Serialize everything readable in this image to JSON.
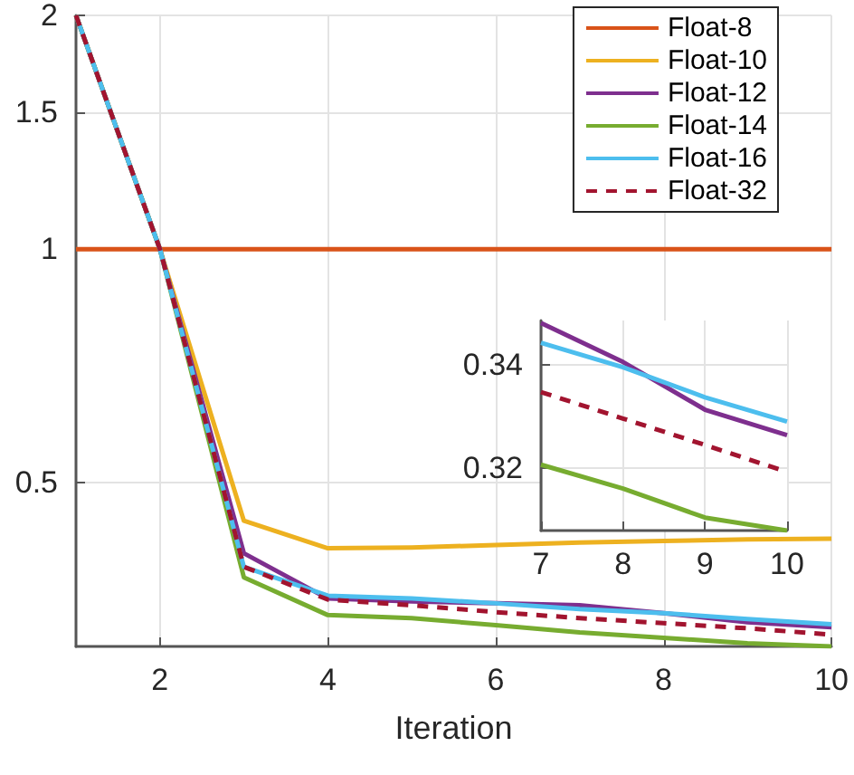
{
  "chart_data": [
    {
      "type": "line",
      "xlabel": "Iteration",
      "x": [
        1,
        2,
        3,
        4,
        5,
        6,
        7,
        8,
        9,
        10
      ],
      "xlim": [
        1,
        10
      ],
      "xticks": [
        2,
        4,
        6,
        8,
        10
      ],
      "ylim": [
        0.308,
        2
      ],
      "yticks": [
        0.5,
        1,
        1.5,
        2
      ],
      "log": "y",
      "grid": true,
      "legend": "top right",
      "series": [
        {
          "name": "Float-8",
          "color": "#d95319",
          "values": [
            1,
            1,
            1,
            1,
            1,
            1,
            1,
            1,
            1,
            1
          ]
        },
        {
          "name": "Float-10",
          "color": "#edb120",
          "values": [
            2,
            1,
            0.447,
            0.412,
            0.413,
            0.416,
            0.419,
            0.421,
            0.423,
            0.424
          ]
        },
        {
          "name": "Float-12",
          "color": "#7e2f8e",
          "values": [
            2,
            1,
            0.406,
            0.355,
            0.352,
            0.35,
            0.348,
            0.34,
            0.331,
            0.326
          ]
        },
        {
          "name": "Float-14",
          "color": "#77ac30",
          "values": [
            2,
            1,
            0.378,
            0.338,
            0.335,
            0.328,
            0.321,
            0.316,
            0.311,
            0.308
          ]
        },
        {
          "name": "Float-16",
          "color": "#4dbeee",
          "values": [
            2,
            1,
            0.39,
            0.358,
            0.355,
            0.35,
            0.344,
            0.34,
            0.334,
            0.329
          ]
        },
        {
          "name": "Float-32",
          "color": "#a2142f",
          "line_style": "dashed",
          "values": [
            2,
            1,
            0.39,
            0.354,
            0.348,
            0.341,
            0.335,
            0.33,
            0.325,
            0.319
          ]
        }
      ]
    },
    {
      "type": "line",
      "x": [
        7,
        8,
        9,
        10
      ],
      "xlim": [
        7,
        10
      ],
      "xticks": [
        7,
        8,
        9,
        10
      ],
      "ylim": [
        0.308,
        0.3485
      ],
      "yticks": [
        0.32,
        0.34
      ],
      "grid": true,
      "series": [
        {
          "color": "#7e2f8e",
          "values": [
            0.348,
            0.3405,
            0.3313,
            0.3264
          ]
        },
        {
          "color": "#77ac30",
          "values": [
            0.3207,
            0.3161,
            0.3105,
            0.308
          ]
        },
        {
          "color": "#4dbeee",
          "values": [
            0.3442,
            0.3395,
            0.3337,
            0.329
          ]
        },
        {
          "color": "#a2142f",
          "line_style": "dashed",
          "values": [
            0.3347,
            0.3296,
            0.3245,
            0.3193
          ]
        }
      ]
    }
  ]
}
